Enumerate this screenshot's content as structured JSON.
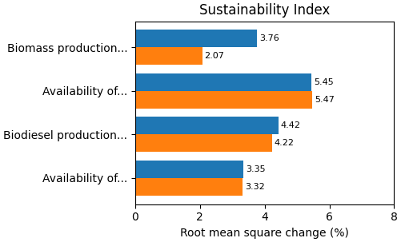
{
  "chart_data": {
    "type": "bar",
    "orientation": "horizontal",
    "title": "Sustainability Index",
    "xlabel": "Root mean square change (%)",
    "categories": [
      "Availability of...",
      "Biodiesel production...",
      "Availability of...",
      "Biomass production..."
    ],
    "series": [
      {
        "values": [
          3.35,
          4.42,
          5.45,
          3.76
        ]
      },
      {
        "values": [
          3.32,
          4.22,
          5.47,
          2.07
        ]
      }
    ],
    "xlim": [
      0,
      8
    ],
    "xticks": [
      0,
      2,
      4,
      6,
      8
    ],
    "data_labels": true,
    "grid": false
  }
}
